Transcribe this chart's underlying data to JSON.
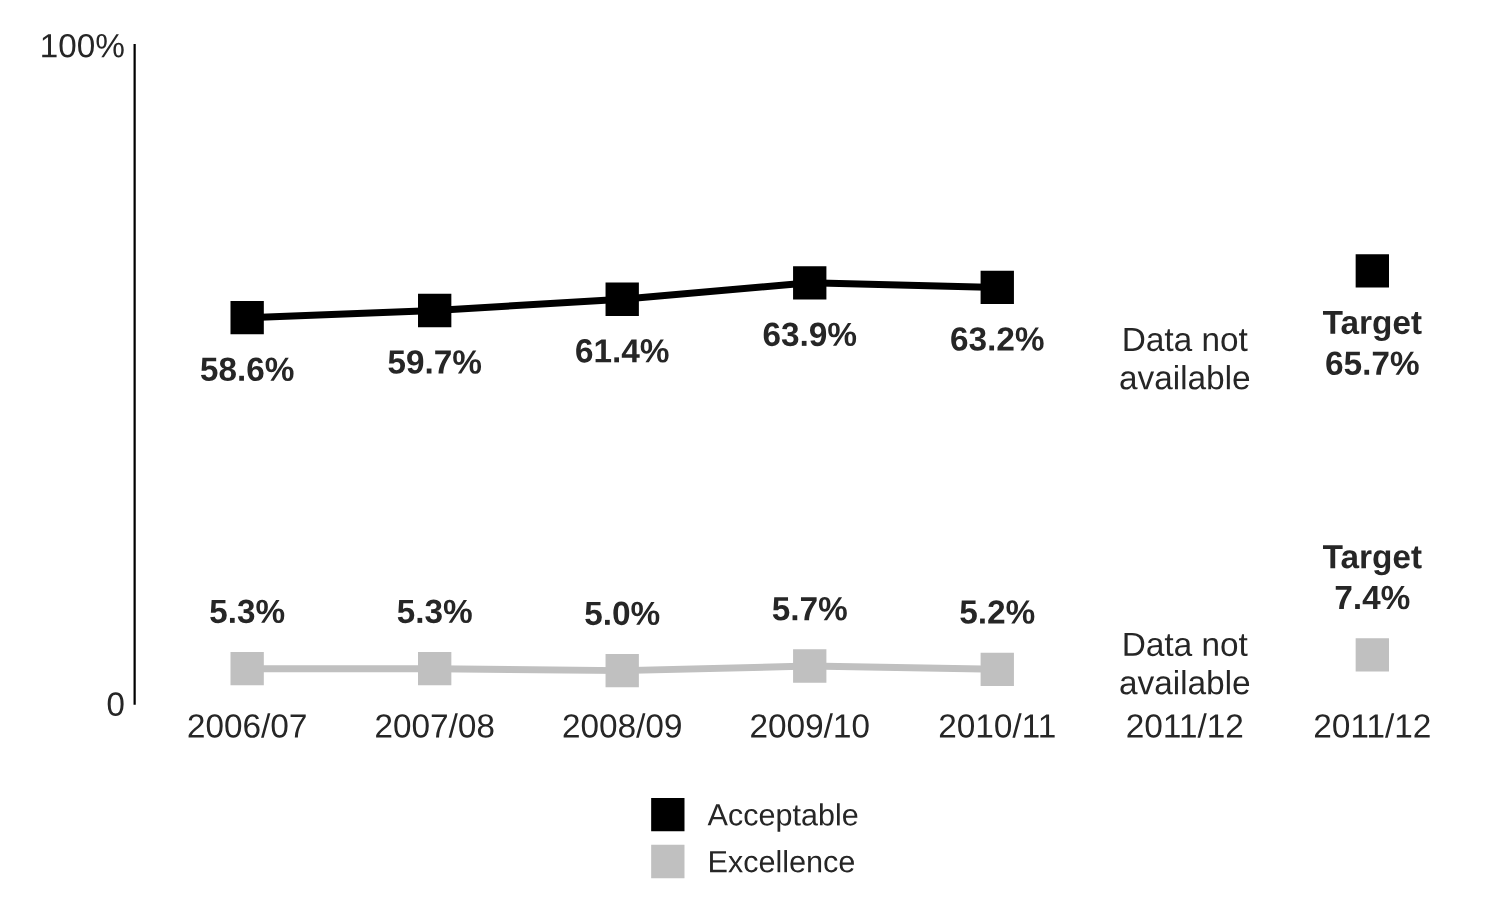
{
  "chart_data": {
    "type": "line",
    "categories": [
      "2006/07",
      "2007/08",
      "2008/09",
      "2009/10",
      "2010/11",
      "2011/12",
      "2011/12"
    ],
    "series": [
      {
        "name": "Acceptable",
        "color": "#000000",
        "values": [
          58.6,
          59.7,
          61.4,
          63.9,
          63.2,
          null,
          65.7
        ],
        "value_labels": [
          "58.6%",
          "59.7%",
          "61.4%",
          "63.9%",
          "63.2%",
          null,
          "Target\n65.7%"
        ]
      },
      {
        "name": "Excellence",
        "color": "#c0c0c0",
        "values": [
          5.3,
          5.3,
          5.0,
          5.7,
          5.2,
          null,
          7.4
        ],
        "value_labels": [
          "5.3%",
          "5.3%",
          "5.0%",
          "5.7%",
          "5.2%",
          null,
          "Target\n7.4%"
        ]
      }
    ],
    "annotations": [
      "Data not available",
      "Data not available"
    ],
    "ylim": [
      0,
      100
    ],
    "yticks": [
      0,
      {
        "value": 100,
        "label": "100%"
      }
    ],
    "grid": false,
    "legend": "bottom",
    "marker": "square",
    "line_style": "solid"
  }
}
